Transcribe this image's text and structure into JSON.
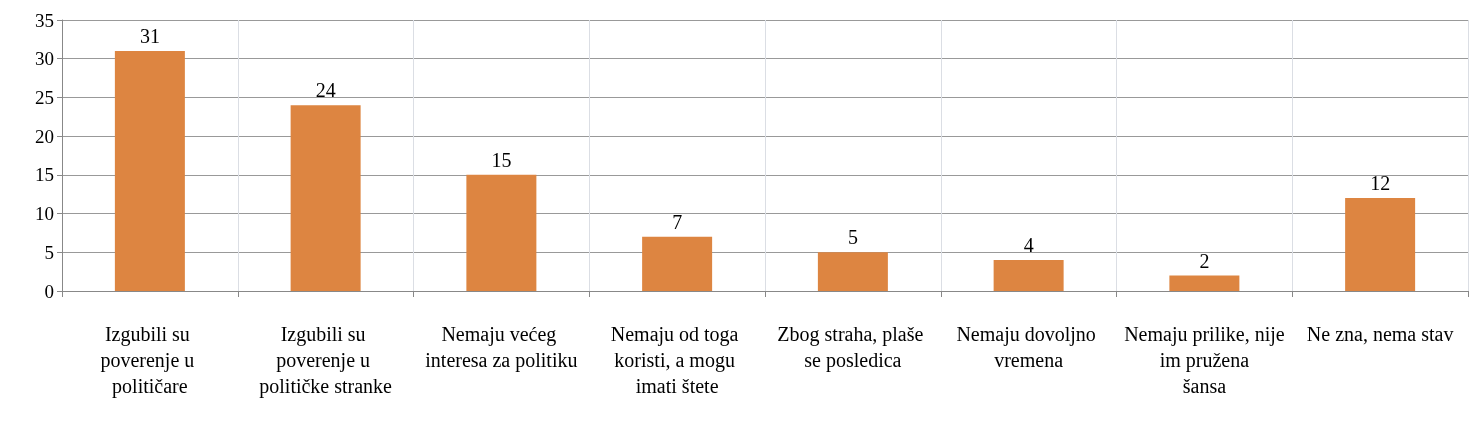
{
  "chart_data": {
    "type": "bar",
    "categories": [
      "Izgubili su poverenje u političare",
      "Izgubili su poverenje u političke stranke",
      "Nemaju većeg interesa za politiku",
      "Nemaju od toga koristi, a mogu imati štete",
      "Zbog straha, plaše se posledica",
      "Nemaju dovoljno vremena",
      "Nemaju prilike, nije im pružena šansa",
      "Ne zna, nema stav"
    ],
    "values": [
      31,
      24,
      15,
      7,
      5,
      4,
      2,
      12
    ],
    "color": "#dd8541",
    "ylim": [
      0,
      35
    ],
    "yticks": [
      0,
      5,
      10,
      15,
      20,
      25,
      30,
      35
    ],
    "grid": true,
    "data_labels": true
  }
}
